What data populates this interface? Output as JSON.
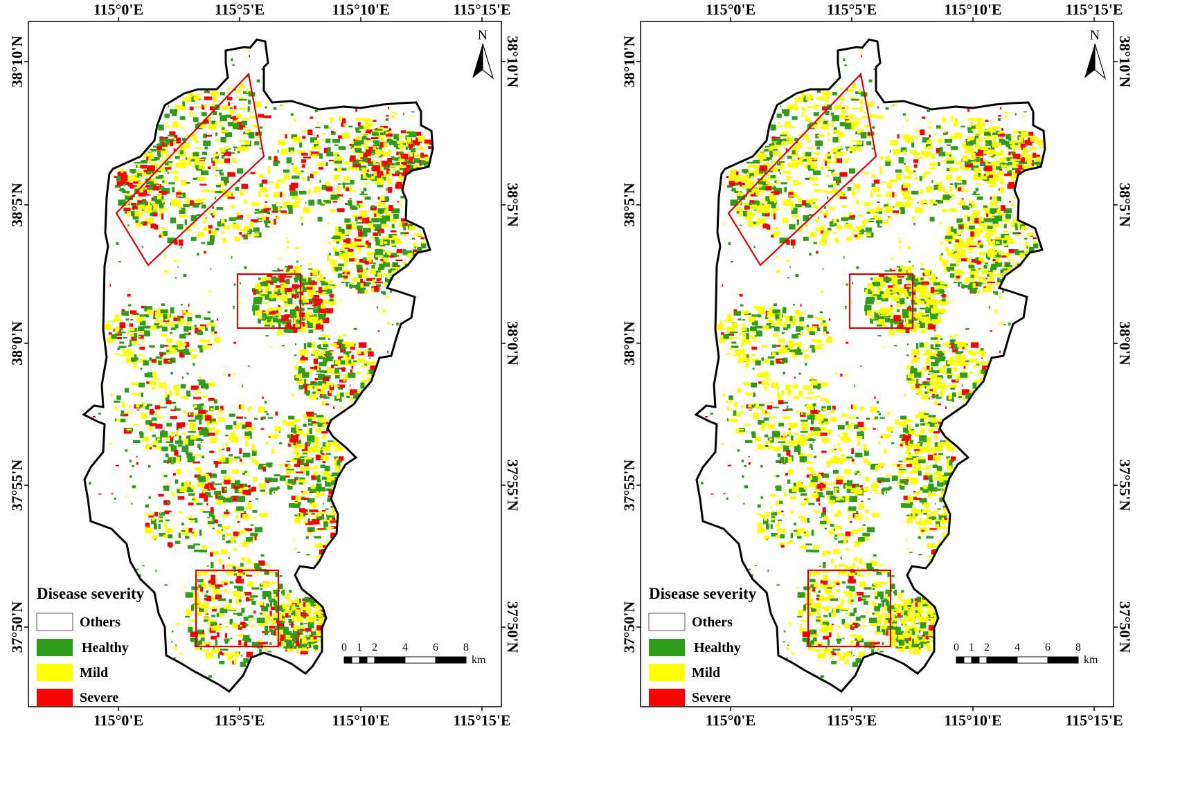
{
  "maps": [
    {
      "id": "left",
      "x_ticks_top": [
        "115°0'E",
        "115°5'E",
        "115°10'E",
        "115°15'E"
      ],
      "x_ticks_bottom": [
        "115°0'E",
        "115°5'E",
        "115°10'E",
        "115°15'E"
      ],
      "y_ticks_left": [
        "38°10'N",
        "38°5'N",
        "38°0'N",
        "37°55'N",
        "37°50'N"
      ],
      "y_ticks_right": [
        "38°10'N",
        "38°5'N",
        "38°0'N",
        "37°55'N",
        "37°50'N"
      ],
      "north_label": "N",
      "legend": {
        "title": "Disease severity",
        "items": [
          {
            "label": "Others",
            "color": "#ffffff"
          },
          {
            "label": "Healthy",
            "color": "#2e9e1a"
          },
          {
            "label": "Mild",
            "color": "#ffff00"
          },
          {
            "label": "Severe",
            "color": "#ff0000"
          }
        ]
      },
      "scale_bar": {
        "labels": [
          "0",
          "1",
          "2",
          "4",
          "6",
          "8"
        ],
        "unit": "km"
      }
    },
    {
      "id": "right",
      "x_ticks_top": [
        "115°0'E",
        "115°5'E",
        "115°10'E",
        "115°15'E"
      ],
      "x_ticks_bottom": [
        "115°0'E",
        "115°5'E",
        "115°10'E",
        "115°15'E"
      ],
      "y_ticks_left": [
        "38°10'N",
        "38°5'N",
        "38°0'N",
        "37°55'N",
        "37°50'N"
      ],
      "y_ticks_right": [
        "38°10'N",
        "38°5'N",
        "38°0'N",
        "37°55'N",
        "37°50'N"
      ],
      "north_label": "N",
      "legend": {
        "title": "Disease severity",
        "items": [
          {
            "label": "Others",
            "color": "#ffffff"
          },
          {
            "label": "Healthy",
            "color": "#2e9e1a"
          },
          {
            "label": "Mild",
            "color": "#ffff00"
          },
          {
            "label": "Severe",
            "color": "#ff0000"
          }
        ]
      },
      "scale_bar": {
        "labels": [
          "0",
          "1",
          "2",
          "4",
          "6",
          "8"
        ],
        "unit": "km"
      }
    }
  ]
}
